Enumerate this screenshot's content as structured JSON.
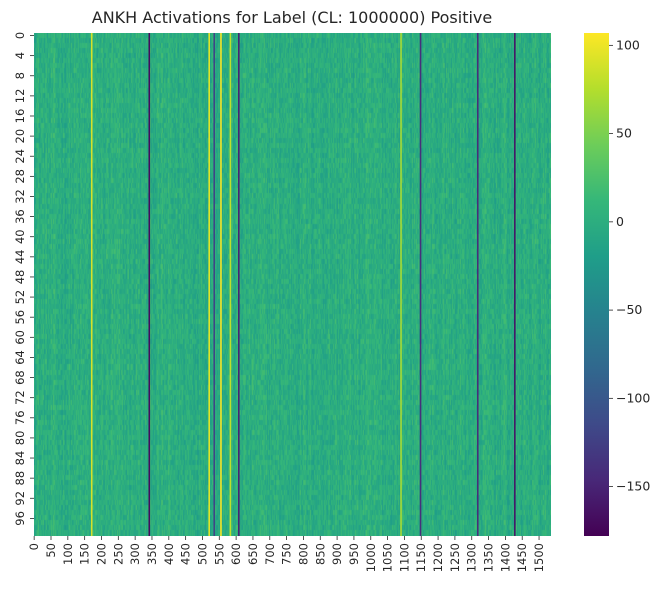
{
  "chart_data": {
    "type": "heatmap",
    "title": "ANKH Activations for Label (CL: 1000000) Positive",
    "xlabel": "",
    "ylabel": "",
    "n_rows": 100,
    "n_cols": 1536,
    "x_tick_labels": [
      "0",
      "50",
      "100",
      "150",
      "200",
      "250",
      "300",
      "350",
      "400",
      "450",
      "500",
      "550",
      "600",
      "650",
      "700",
      "750",
      "800",
      "850",
      "900",
      "950",
      "1000",
      "1050",
      "1100",
      "1150",
      "1200",
      "1250",
      "1300",
      "1350",
      "1400",
      "1450",
      "1500"
    ],
    "y_tick_labels": [
      "0",
      "4",
      "8",
      "12",
      "16",
      "20",
      "24",
      "28",
      "32",
      "36",
      "40",
      "44",
      "48",
      "52",
      "56",
      "60",
      "64",
      "68",
      "72",
      "76",
      "80",
      "84",
      "88",
      "92",
      "96"
    ],
    "colorbar": {
      "colormap": "viridis",
      "vmin": -178,
      "vmax": 107,
      "tick_values": [
        100,
        50,
        0,
        -50,
        -100,
        -150
      ],
      "tick_labels": [
        "100",
        "50",
        "0",
        "−50",
        "−100",
        "−150"
      ]
    },
    "column_features": [
      {
        "col": 342,
        "value": -170,
        "note": "dark"
      },
      {
        "col": 535,
        "value": -120,
        "note": "dark"
      },
      {
        "col": 608,
        "value": -150,
        "note": "dark"
      },
      {
        "col": 1148,
        "value": -140,
        "note": "dark"
      },
      {
        "col": 1318,
        "value": -140,
        "note": "dark"
      },
      {
        "col": 1428,
        "value": -160,
        "note": "dark"
      },
      {
        "col": 171,
        "value": 90,
        "note": "bright"
      },
      {
        "col": 520,
        "value": 95,
        "note": "bright"
      },
      {
        "col": 555,
        "value": 105,
        "note": "bright"
      },
      {
        "col": 583,
        "value": 80,
        "note": "bright"
      },
      {
        "col": 1090,
        "value": 70,
        "note": "bright"
      }
    ]
  }
}
